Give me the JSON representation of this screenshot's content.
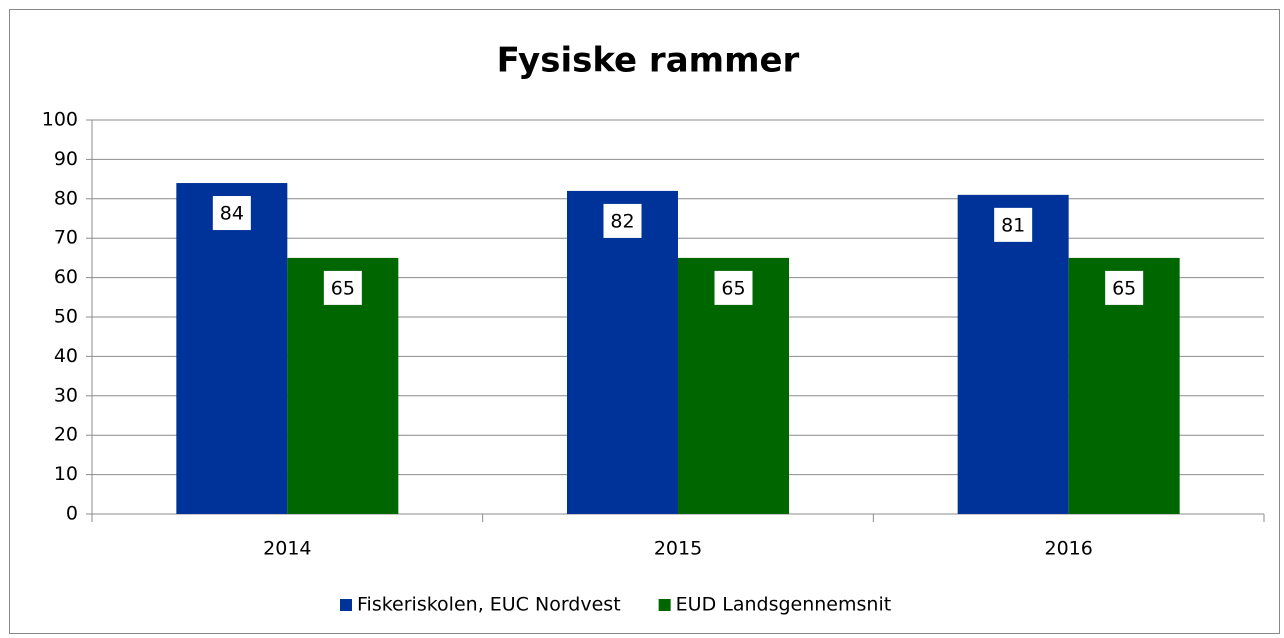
{
  "chart_data": {
    "type": "bar",
    "title": "Fysiske rammer",
    "categories": [
      "2014",
      "2015",
      "2016"
    ],
    "series": [
      {
        "name": "Fiskeriskolen, EUC Nordvest",
        "color": "#003399",
        "values": [
          84,
          82,
          81
        ]
      },
      {
        "name": "EUD Landsgennemsnit",
        "color": "#006600",
        "values": [
          65,
          65,
          65
        ]
      }
    ],
    "ylim": [
      0,
      100
    ],
    "yticks": [
      0,
      10,
      20,
      30,
      40,
      50,
      60,
      70,
      80,
      90,
      100
    ],
    "grid": true,
    "legend": "bottom"
  }
}
